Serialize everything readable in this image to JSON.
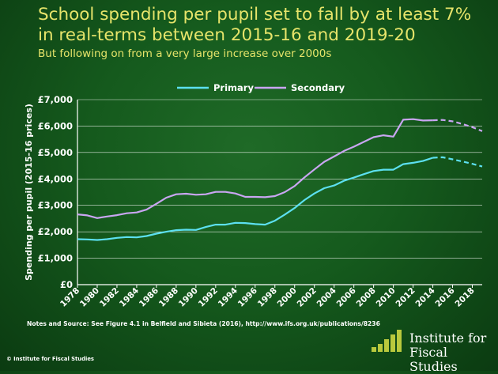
{
  "header": {
    "title": "School spending per pupil set to fall by at least 7% in real-terms between 2015-16 and 2019-20",
    "subtitle": "But following on from a very large increase over 2000s"
  },
  "footer": {
    "notes": "Notes and Source:  See Figure  4.1 in Belfield and Sibieta (2016), http://www.ifs.org.uk/publications/8236",
    "copyright": "© Institute for Fiscal Studies",
    "logo_line1": "Institute for",
    "logo_line2": "Fiscal Studies"
  },
  "colors": {
    "primary": "#5ce0f0",
    "secondary": "#c9a6f2",
    "background": "#155a1d",
    "title": "#e6e46a",
    "axis": "#ffffff",
    "gridline": "#ffffff",
    "logo_bars": "#b9c93d"
  },
  "chart_data": {
    "type": "line",
    "title": "School spending per pupil set to fall by at least 7% in real-terms between 2015-16 and 2019-20",
    "subtitle": "But following on from a very large increase over 2000s",
    "xlabel": "",
    "ylabel": "Spending per pupil (2015-16 prices)",
    "xlim": [
      1978,
      2019
    ],
    "ylim": [
      0,
      7000
    ],
    "ytick_values": [
      0,
      1000,
      2000,
      3000,
      4000,
      5000,
      6000,
      7000
    ],
    "yticks": [
      "£0",
      "£1,000",
      "£2,000",
      "£3,000",
      "£4,000",
      "£5,000",
      "£6,000",
      "£7,000"
    ],
    "xticks": [
      "1978",
      "1980",
      "1982",
      "1984",
      "1986",
      "1988",
      "1990",
      "1992",
      "1994",
      "1996",
      "1998",
      "2000",
      "2002",
      "2004",
      "2006",
      "2008",
      "2010",
      "2012",
      "2014",
      "2016",
      "2018"
    ],
    "grid": "horizontal",
    "legend_position": "top",
    "x": [
      1978,
      1979,
      1980,
      1981,
      1982,
      1983,
      1984,
      1985,
      1986,
      1987,
      1988,
      1989,
      1990,
      1991,
      1992,
      1993,
      1994,
      1995,
      1996,
      1997,
      1998,
      1999,
      2000,
      2001,
      2002,
      2003,
      2004,
      2005,
      2006,
      2007,
      2008,
      2009,
      2010,
      2011,
      2012,
      2013,
      2014,
      2015,
      2016,
      2017,
      2018,
      2019
    ],
    "series": [
      {
        "name": "Primary",
        "values": [
          1720,
          1710,
          1690,
          1720,
          1770,
          1800,
          1790,
          1840,
          1930,
          2000,
          2060,
          2080,
          2070,
          2180,
          2270,
          2270,
          2340,
          2330,
          2290,
          2270,
          2420,
          2650,
          2900,
          3200,
          3450,
          3650,
          3750,
          3930,
          4050,
          4180,
          4300,
          4350,
          4350,
          4560,
          4610,
          4680,
          4800,
          4820,
          4740,
          4660,
          4570,
          4470
        ],
        "projected_from": 2014
      },
      {
        "name": "Secondary",
        "values": [
          2660,
          2620,
          2520,
          2580,
          2630,
          2700,
          2730,
          2840,
          3060,
          3290,
          3420,
          3440,
          3400,
          3420,
          3510,
          3510,
          3450,
          3320,
          3320,
          3310,
          3350,
          3500,
          3730,
          4060,
          4360,
          4650,
          4850,
          5060,
          5220,
          5400,
          5580,
          5650,
          5600,
          6240,
          6260,
          6210,
          6220,
          6230,
          6180,
          6080,
          5960,
          5810
        ],
        "projected_from": 2014
      }
    ]
  }
}
